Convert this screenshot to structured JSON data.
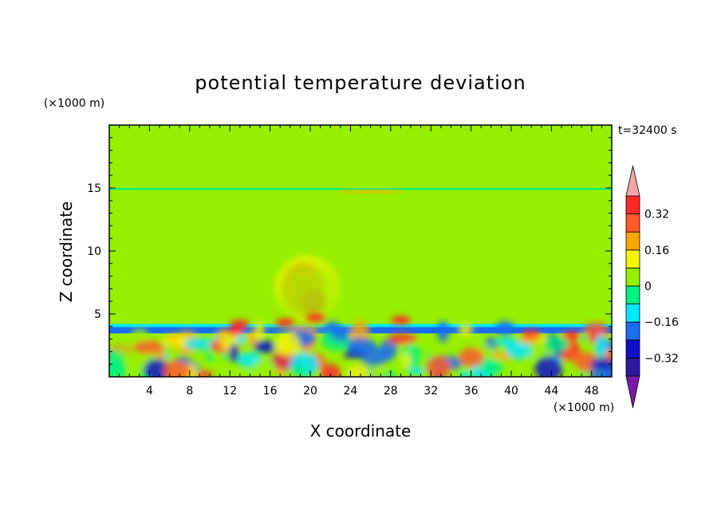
{
  "chart_data": {
    "type": "heatmap",
    "title": "potential temperature deviation",
    "xlabel": "X coordinate",
    "ylabel": "Z coordinate",
    "x_unit": "(×1000 m)",
    "y_unit": "(×1000 m)",
    "time_label": "t=32400 s",
    "xlim": [
      0,
      50
    ],
    "ylim": [
      0,
      20
    ],
    "x_ticks": [
      4,
      8,
      12,
      16,
      20,
      24,
      28,
      32,
      36,
      40,
      44,
      48
    ],
    "y_ticks": [
      5,
      10,
      15
    ],
    "colorbar": {
      "levels": [
        -0.4,
        -0.32,
        -0.24,
        -0.16,
        -0.08,
        0,
        0.08,
        0.16,
        0.24,
        0.32,
        0.4
      ],
      "tick_values": [
        0.32,
        0.16,
        0,
        -0.16,
        -0.32
      ],
      "tick_labels": [
        "0.32",
        "0.16",
        "0",
        "−0.16",
        "−0.32"
      ],
      "colors": [
        "#7a1ba8",
        "#2a1aa0",
        "#1010c8",
        "#1a6cf0",
        "#00e8ff",
        "#00f082",
        "#96f000",
        "#f5f500",
        "#ffa500",
        "#ff5a2a",
        "#ff2828",
        "#f4a6a6"
      ],
      "extend": "both"
    },
    "features": [
      {
        "type": "layer",
        "z": [
          3.45,
          3.95
        ],
        "value": -0.24
      },
      {
        "type": "layer",
        "z": [
          3.95,
          4.2
        ],
        "value": -0.1
      },
      {
        "type": "layer",
        "z": [
          14.6,
          14.85
        ],
        "value": 0.04
      },
      {
        "type": "layer",
        "z": [
          14.85,
          15.0
        ],
        "value": -0.06
      },
      {
        "type": "plume",
        "x": [
          17,
          23
        ],
        "z": [
          5,
          10
        ],
        "value": 0.22
      },
      {
        "type": "band",
        "z": [
          15.2,
          19.8
        ],
        "value": 0.04
      },
      {
        "type": "band",
        "z": [
          10.5,
          14.3
        ],
        "value": 0.04
      },
      {
        "type": "spot",
        "x": 26,
        "z": 14.75,
        "value": 0.16
      },
      {
        "type": "boundary_layer",
        "z": [
          0,
          3.9
        ],
        "value_range": [
          -0.3,
          0.4
        ]
      }
    ]
  }
}
